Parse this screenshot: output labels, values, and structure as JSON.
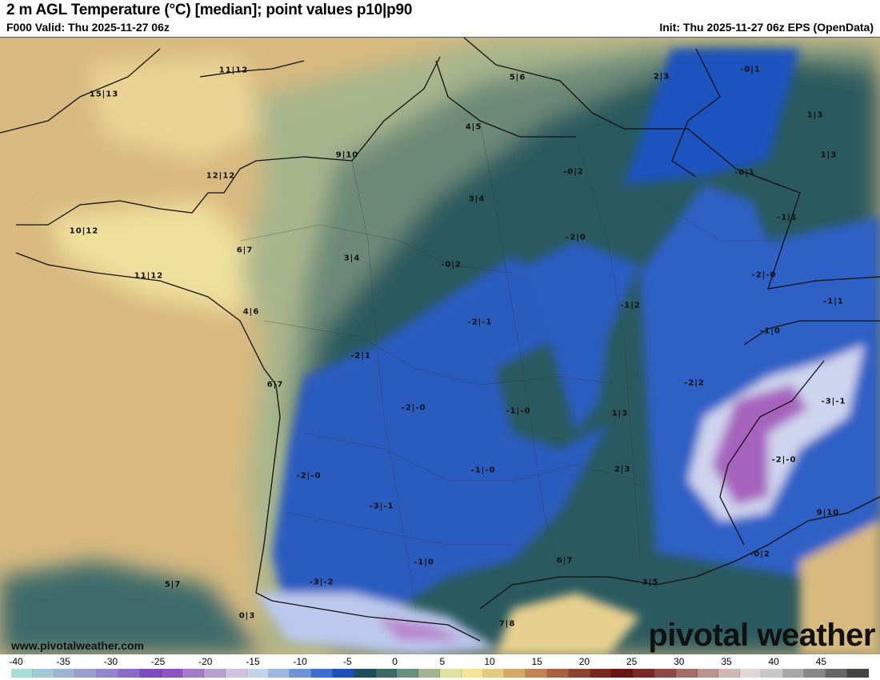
{
  "header": {
    "title": "2 m AGL Temperature (°C) [median]; point values p10|p90",
    "valid": "F000 Valid: Thu 2025-11-27 06z",
    "init": "Init: Thu 2025-11-27 06z EPS (OpenData)"
  },
  "map": {
    "point_values": [
      "15|13",
      "11|12",
      "12|12",
      "9|10",
      "10|12",
      "6|7",
      "11|12",
      "3|4",
      "4|6",
      "5|6",
      "2|3",
      "-0|1",
      "4|5",
      "1|3",
      "1|3",
      "-0|2",
      "-0|1",
      "3|4",
      "-1|1",
      "-2|0",
      "-0|2",
      "-2|-0",
      "-1|1",
      "-1|2",
      "-2|-1",
      "-1|0",
      "-2|1",
      "6|7",
      "-2|2",
      "-3|-1",
      "-2|-0",
      "-1|-0",
      "1|3",
      "-2|-0",
      "-2|-0",
      "-1|-0",
      "2|3",
      "-3|-1",
      "9|10",
      "-0|2",
      "-1|0",
      "6|7",
      "3|5",
      "5|7",
      "-3|-2",
      "0|3",
      "7|8"
    ],
    "website": "www.pivotalweather.com",
    "brand": "pivotal weather"
  },
  "colorbar": {
    "ticks": [
      "-40",
      "-35",
      "-30",
      "-25",
      "-20",
      "-15",
      "-10",
      "-5",
      "0",
      "5",
      "10",
      "15",
      "20",
      "25",
      "30",
      "35",
      "40",
      "45"
    ],
    "colors": [
      "#a8dcd9",
      "#a3c9d6",
      "#9fb4d4",
      "#9b9ed1",
      "#9486cc",
      "#8a6cc6",
      "#7c4bbd",
      "#8e55c0",
      "#a27cc8",
      "#b8a0d2",
      "#cfc3df",
      "#c3d3ea",
      "#9bb7e2",
      "#6f95d9",
      "#3f6ecc",
      "#1f4fb8",
      "#1e4f5a",
      "#3d6a67",
      "#6b8f7e",
      "#a3b58e",
      "#e0e2a4",
      "#f2e59a",
      "#e6c986",
      "#d5a86c",
      "#c08556",
      "#a7623f",
      "#8c4330",
      "#77281f",
      "#6a1515",
      "#7a2a24",
      "#8e4a42",
      "#a56d67",
      "#bb938f",
      "#d0b8b5",
      "#e0d6d6",
      "#c8c8c8",
      "#a8a8a8",
      "#888",
      "#666",
      "#444"
    ]
  }
}
